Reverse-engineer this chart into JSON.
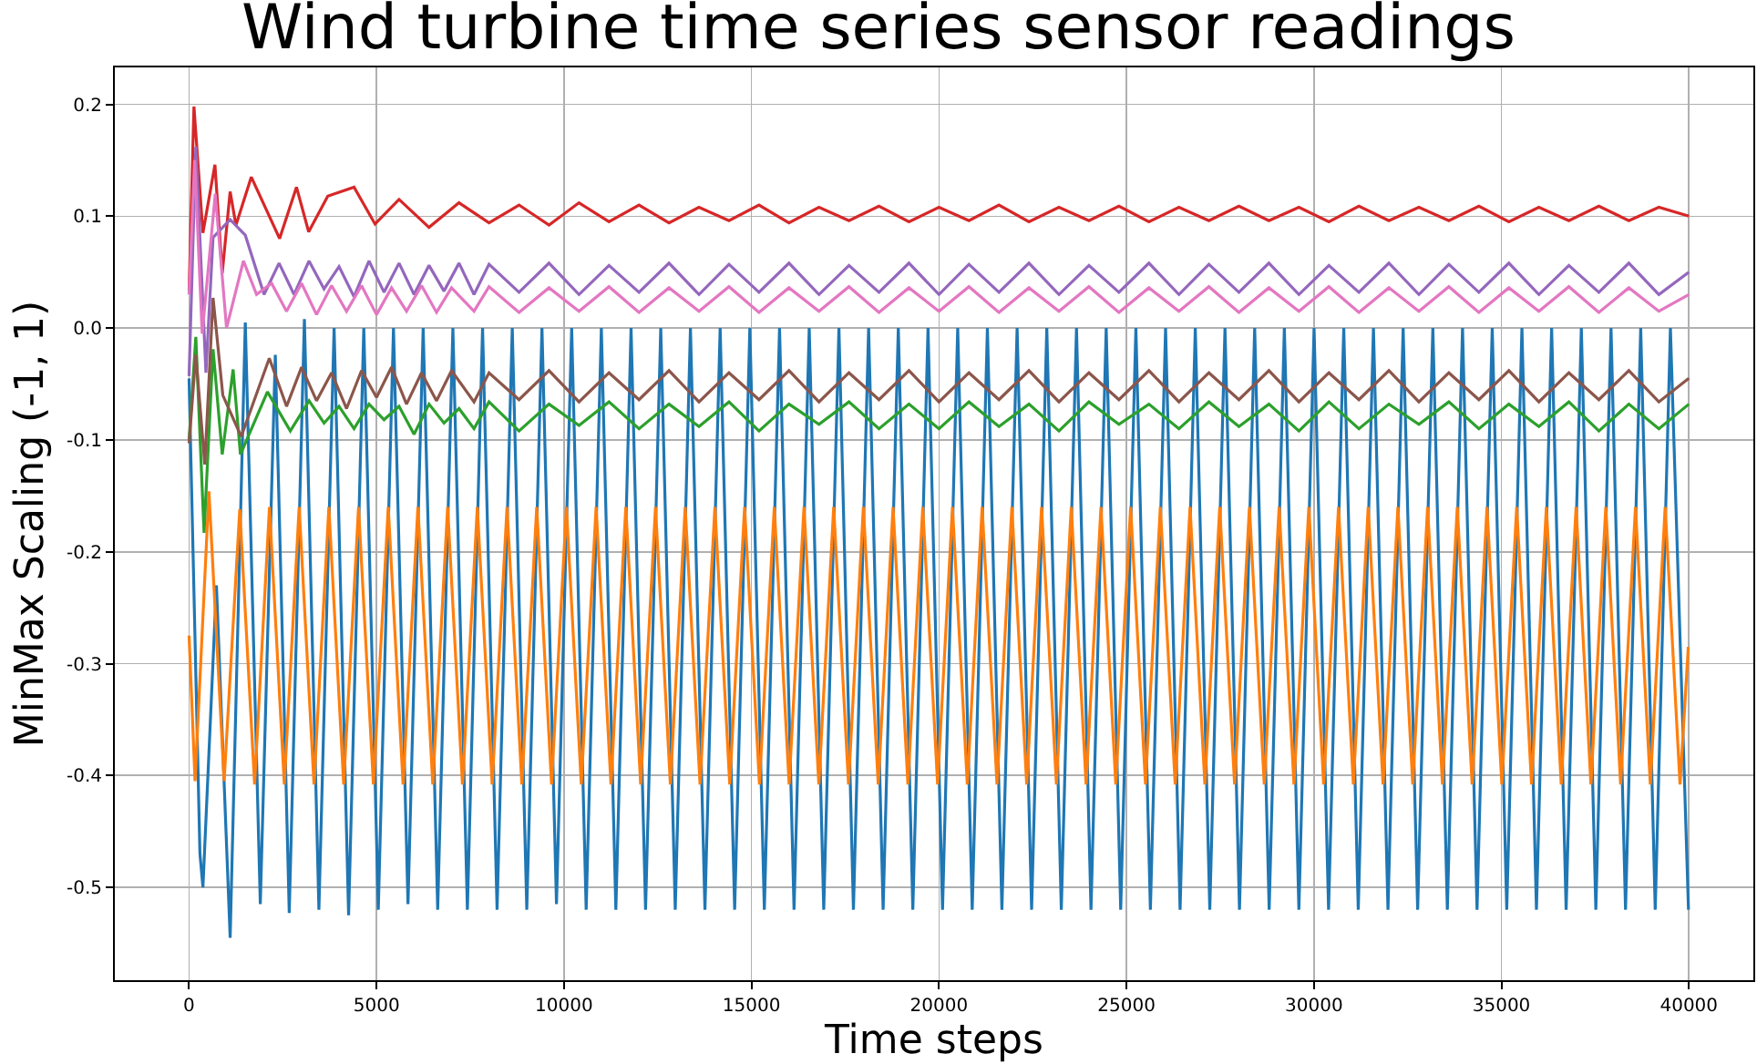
{
  "chart_data": {
    "type": "line",
    "title": "Wind turbine time series sensor readings",
    "xlabel": "Time steps",
    "ylabel": "MinMax Scaling (-1, 1)",
    "xlim": [
      -1980,
      41720
    ],
    "ylim": [
      -0.583,
      0.233
    ],
    "xticks": [
      0,
      5000,
      10000,
      15000,
      20000,
      25000,
      30000,
      35000,
      40000
    ],
    "yticks": [
      {
        "value": -0.5,
        "label": "-0.5"
      },
      {
        "value": -0.4,
        "label": "-0.4"
      },
      {
        "value": -0.3,
        "label": "-0.3"
      },
      {
        "value": -0.2,
        "label": "-0.2"
      },
      {
        "value": -0.1,
        "label": "-0.1"
      },
      {
        "value": 0,
        "label": "0.0"
      },
      {
        "value": 0.1,
        "label": "0.1"
      },
      {
        "value": 0.2,
        "label": "0.2"
      }
    ],
    "grid": true,
    "series": [
      {
        "color": "#1f77b4",
        "x": [
          0,
          290,
          370,
          730,
          1096,
          1500,
          1900,
          2300,
          2672,
          3076,
          3463,
          3868,
          4255,
          4660,
          5047,
          5452,
          5839,
          6244,
          6631,
          7036,
          7423,
          7828,
          8215,
          8620,
          9007,
          9412,
          9799,
          10204,
          10591,
          10996,
          11383,
          11788,
          12175,
          12580,
          12967,
          13372,
          13759,
          14164,
          14551,
          14956,
          15343,
          15748,
          16135,
          16540,
          16927,
          17332,
          17719,
          18124,
          18511,
          18916,
          19303,
          19708,
          20095,
          20500,
          20887,
          21292,
          21679,
          22084,
          22471,
          22876,
          23263,
          23668,
          24055,
          24460,
          24847,
          25252,
          25639,
          26044,
          26431,
          26836,
          27223,
          27628,
          28015,
          28420,
          28807,
          29212,
          29599,
          30004,
          30391,
          30796,
          31183,
          31588,
          31975,
          32380,
          32767,
          33172,
          33559,
          33964,
          34351,
          34756,
          35143,
          35548,
          35935,
          36340,
          36727,
          37132,
          37519,
          37924,
          38311,
          38716,
          39103,
          39508,
          39990
        ],
        "values": [
          -0.045,
          -0.47,
          -0.5,
          -0.23,
          -0.545,
          0.005,
          -0.515,
          -0.024,
          -0.523,
          0.008,
          -0.52,
          0.0,
          -0.525,
          0.0,
          -0.52,
          0.0,
          -0.515,
          0.0,
          -0.52,
          0.0,
          -0.52,
          0.0,
          -0.52,
          0.0,
          -0.52,
          0.0,
          -0.515,
          0.0,
          -0.52,
          0.0,
          -0.52,
          0.0,
          -0.52,
          0.0,
          -0.52,
          0.0,
          -0.52,
          0.0,
          -0.52,
          0.0,
          -0.52,
          0.0,
          -0.52,
          0.0,
          -0.52,
          0.0,
          -0.52,
          0.0,
          -0.52,
          0.0,
          -0.52,
          0.0,
          -0.52,
          0.0,
          -0.52,
          0.0,
          -0.52,
          0.0,
          -0.52,
          0.0,
          -0.52,
          0.0,
          -0.52,
          0.0,
          -0.52,
          0.0,
          -0.52,
          0.0,
          -0.52,
          0.0,
          -0.52,
          0.0,
          -0.52,
          0.0,
          -0.52,
          0.0,
          -0.52,
          0.0,
          -0.52,
          0.0,
          -0.52,
          0.0,
          -0.52,
          0.0,
          -0.52,
          0.0,
          -0.52,
          0.0,
          -0.52,
          0.0,
          -0.52,
          0.0,
          -0.52,
          0.0,
          -0.52,
          0.0,
          -0.52,
          0.0,
          -0.52,
          0.0,
          -0.52,
          0.0,
          -0.52
        ]
      },
      {
        "color": "#ff7f0e",
        "x": [
          0,
          160,
          530,
          935,
          1352,
          1748,
          2144,
          2540,
          2936,
          3332,
          3728,
          4124,
          4520,
          4916,
          5312,
          5708,
          6104,
          6500,
          6896,
          7292,
          7688,
          8084,
          8480,
          8876,
          9272,
          9668,
          10064,
          10460,
          10856,
          11252,
          11648,
          12044,
          12440,
          12836,
          13232,
          13628,
          14024,
          14420,
          14816,
          15212,
          15608,
          16004,
          16400,
          16796,
          17192,
          17588,
          17984,
          18380,
          18776,
          19172,
          19568,
          19964,
          20360,
          20756,
          21152,
          21548,
          21944,
          22340,
          22736,
          23132,
          23528,
          23924,
          24320,
          24716,
          25112,
          25508,
          25904,
          26300,
          26696,
          27092,
          27488,
          27884,
          28280,
          28676,
          29072,
          29468,
          29864,
          30260,
          30656,
          31052,
          31448,
          31844,
          32240,
          32636,
          33032,
          33428,
          33824,
          34220,
          34616,
          35012,
          35408,
          35804,
          36200,
          36596,
          36992,
          37388,
          37784,
          38180,
          38576,
          38972,
          39368,
          39764,
          39985
        ],
        "values": [
          -0.275,
          -0.405,
          -0.146,
          -0.405,
          -0.162,
          -0.408,
          -0.16,
          -0.408,
          -0.16,
          -0.408,
          -0.16,
          -0.408,
          -0.16,
          -0.408,
          -0.16,
          -0.408,
          -0.16,
          -0.408,
          -0.16,
          -0.408,
          -0.16,
          -0.408,
          -0.16,
          -0.408,
          -0.16,
          -0.408,
          -0.16,
          -0.408,
          -0.16,
          -0.408,
          -0.16,
          -0.408,
          -0.16,
          -0.408,
          -0.16,
          -0.408,
          -0.16,
          -0.408,
          -0.16,
          -0.408,
          -0.16,
          -0.408,
          -0.16,
          -0.408,
          -0.16,
          -0.408,
          -0.16,
          -0.408,
          -0.16,
          -0.408,
          -0.16,
          -0.408,
          -0.16,
          -0.408,
          -0.16,
          -0.408,
          -0.16,
          -0.408,
          -0.16,
          -0.408,
          -0.16,
          -0.408,
          -0.16,
          -0.408,
          -0.16,
          -0.408,
          -0.16,
          -0.408,
          -0.16,
          -0.408,
          -0.16,
          -0.408,
          -0.16,
          -0.408,
          -0.16,
          -0.408,
          -0.16,
          -0.408,
          -0.16,
          -0.408,
          -0.16,
          -0.408,
          -0.16,
          -0.408,
          -0.16,
          -0.408,
          -0.16,
          -0.408,
          -0.16,
          -0.408,
          -0.16,
          -0.408,
          -0.16,
          -0.408,
          -0.16,
          -0.408,
          -0.16,
          -0.408,
          -0.16,
          -0.408,
          -0.16,
          -0.408,
          -0.285
        ]
      },
      {
        "color": "#2ca02c",
        "x": [
          0,
          180,
          400,
          640,
          885,
          1175,
          1370,
          2090,
          2700,
          3200,
          3600,
          4000,
          4400,
          4800,
          5200,
          5600,
          6000,
          6400,
          6800,
          7200,
          7600,
          8000,
          8800,
          9600,
          10400,
          11200,
          12000,
          12800,
          13600,
          14400,
          15200,
          16000,
          16800,
          17600,
          18400,
          19200,
          20000,
          20800,
          21600,
          22400,
          23200,
          24000,
          24800,
          25600,
          26400,
          27200,
          28000,
          28800,
          29600,
          30400,
          31200,
          32000,
          32800,
          33600,
          34400,
          35200,
          36000,
          36800,
          37600,
          38400,
          39200,
          40000
        ],
        "values": [
          -0.1,
          -0.008,
          -0.183,
          -0.019,
          -0.113,
          -0.037,
          -0.113,
          -0.057,
          -0.092,
          -0.065,
          -0.085,
          -0.07,
          -0.09,
          -0.068,
          -0.082,
          -0.07,
          -0.095,
          -0.068,
          -0.085,
          -0.072,
          -0.09,
          -0.066,
          -0.092,
          -0.068,
          -0.087,
          -0.066,
          -0.09,
          -0.068,
          -0.088,
          -0.066,
          -0.092,
          -0.068,
          -0.086,
          -0.066,
          -0.09,
          -0.068,
          -0.09,
          -0.066,
          -0.088,
          -0.068,
          -0.092,
          -0.066,
          -0.086,
          -0.068,
          -0.09,
          -0.066,
          -0.088,
          -0.068,
          -0.092,
          -0.066,
          -0.09,
          -0.068,
          -0.086,
          -0.066,
          -0.09,
          -0.068,
          -0.088,
          -0.066,
          -0.092,
          -0.068,
          -0.09,
          -0.068
        ]
      },
      {
        "color": "#d62728",
        "x": [
          0,
          130,
          370,
          690,
          885,
          1095,
          1250,
          1660,
          2415,
          2865,
          3190,
          3700,
          4400,
          4960,
          5600,
          6400,
          7200,
          8000,
          8800,
          9600,
          10400,
          11200,
          12000,
          12800,
          13600,
          14400,
          15200,
          16000,
          16800,
          17600,
          18400,
          19200,
          20000,
          20800,
          21600,
          22400,
          23200,
          24000,
          24800,
          25600,
          26400,
          27200,
          28000,
          28800,
          29600,
          30400,
          31200,
          32000,
          32800,
          33600,
          34400,
          35200,
          36000,
          36800,
          37600,
          38400,
          39200,
          40000
        ],
        "values": [
          0.033,
          0.198,
          0.085,
          0.146,
          0.049,
          0.122,
          0.092,
          0.135,
          0.08,
          0.126,
          0.086,
          0.118,
          0.126,
          0.093,
          0.115,
          0.09,
          0.112,
          0.094,
          0.11,
          0.092,
          0.112,
          0.095,
          0.11,
          0.094,
          0.108,
          0.096,
          0.11,
          0.094,
          0.108,
          0.096,
          0.109,
          0.095,
          0.108,
          0.096,
          0.11,
          0.095,
          0.108,
          0.096,
          0.109,
          0.095,
          0.108,
          0.096,
          0.109,
          0.096,
          0.108,
          0.095,
          0.109,
          0.096,
          0.108,
          0.096,
          0.109,
          0.095,
          0.108,
          0.096,
          0.109,
          0.096,
          0.108,
          0.1
        ]
      },
      {
        "color": "#9467bd",
        "x": [
          0,
          180,
          450,
          640,
          1095,
          1500,
          2000,
          2400,
          2800,
          3200,
          3600,
          4000,
          4400,
          4800,
          5200,
          5600,
          6000,
          6400,
          6800,
          7200,
          7600,
          8000,
          8800,
          9600,
          10400,
          11200,
          12000,
          12800,
          13600,
          14400,
          15200,
          16000,
          16800,
          17600,
          18400,
          19200,
          20000,
          20800,
          21600,
          22400,
          23200,
          24000,
          24800,
          25600,
          26400,
          27200,
          28000,
          28800,
          29600,
          30400,
          31200,
          32000,
          32800,
          33600,
          34400,
          35200,
          36000,
          36800,
          37600,
          38400,
          39200,
          40000
        ],
        "values": [
          -0.043,
          0.162,
          -0.04,
          0.081,
          0.097,
          0.083,
          0.03,
          0.058,
          0.03,
          0.06,
          0.035,
          0.055,
          0.028,
          0.06,
          0.032,
          0.058,
          0.03,
          0.056,
          0.033,
          0.058,
          0.03,
          0.057,
          0.032,
          0.058,
          0.03,
          0.056,
          0.032,
          0.058,
          0.03,
          0.057,
          0.032,
          0.058,
          0.03,
          0.056,
          0.032,
          0.058,
          0.03,
          0.057,
          0.032,
          0.058,
          0.03,
          0.056,
          0.032,
          0.058,
          0.03,
          0.057,
          0.032,
          0.058,
          0.03,
          0.056,
          0.032,
          0.058,
          0.03,
          0.057,
          0.032,
          0.058,
          0.03,
          0.056,
          0.032,
          0.058,
          0.03,
          0.05
        ]
      },
      {
        "color": "#8c564b",
        "x": [
          0,
          180,
          420,
          640,
          900,
          1390,
          2140,
          2600,
          3000,
          3400,
          3800,
          4200,
          4600,
          5000,
          5400,
          5800,
          6200,
          6600,
          7000,
          7600,
          8000,
          8800,
          9600,
          10400,
          11200,
          12000,
          12800,
          13600,
          14400,
          15200,
          16000,
          16800,
          17600,
          18400,
          19200,
          20000,
          20800,
          21600,
          22400,
          23200,
          24000,
          24800,
          25600,
          26400,
          27200,
          28000,
          28800,
          29600,
          30400,
          31200,
          32000,
          32800,
          33600,
          34400,
          35200,
          36000,
          36800,
          37600,
          38400,
          39200,
          40000
        ],
        "values": [
          -0.103,
          -0.024,
          -0.122,
          0.027,
          -0.06,
          -0.097,
          -0.027,
          -0.07,
          -0.035,
          -0.065,
          -0.04,
          -0.072,
          -0.038,
          -0.062,
          -0.035,
          -0.068,
          -0.04,
          -0.065,
          -0.038,
          -0.066,
          -0.04,
          -0.064,
          -0.038,
          -0.066,
          -0.04,
          -0.064,
          -0.038,
          -0.066,
          -0.04,
          -0.064,
          -0.038,
          -0.066,
          -0.04,
          -0.064,
          -0.038,
          -0.066,
          -0.04,
          -0.064,
          -0.038,
          -0.066,
          -0.04,
          -0.064,
          -0.038,
          -0.066,
          -0.04,
          -0.064,
          -0.038,
          -0.066,
          -0.04,
          -0.064,
          -0.038,
          -0.066,
          -0.04,
          -0.064,
          -0.038,
          -0.066,
          -0.04,
          -0.064,
          -0.038,
          -0.066,
          -0.045
        ]
      },
      {
        "color": "#e377c2",
        "x": [
          0,
          150,
          350,
          700,
          1000,
          1450,
          1800,
          2200,
          2600,
          3000,
          3400,
          3800,
          4200,
          4600,
          5000,
          5400,
          5800,
          6200,
          6600,
          7000,
          7600,
          8000,
          8800,
          9600,
          10400,
          11200,
          12000,
          12800,
          13600,
          14400,
          15200,
          16000,
          16800,
          17600,
          18400,
          19200,
          20000,
          20800,
          21600,
          22400,
          23200,
          24000,
          24800,
          25600,
          26400,
          27200,
          28000,
          28800,
          29600,
          30400,
          31200,
          32000,
          32800,
          33600,
          34400,
          35200,
          36000,
          36800,
          37600,
          38400,
          39200,
          40000
        ],
        "values": [
          0.03,
          0.15,
          -0.005,
          0.12,
          0.0,
          0.06,
          0.03,
          0.04,
          0.015,
          0.04,
          0.012,
          0.038,
          0.015,
          0.038,
          0.012,
          0.036,
          0.015,
          0.038,
          0.014,
          0.036,
          0.015,
          0.037,
          0.014,
          0.036,
          0.015,
          0.037,
          0.014,
          0.036,
          0.015,
          0.037,
          0.014,
          0.036,
          0.015,
          0.037,
          0.014,
          0.036,
          0.015,
          0.037,
          0.014,
          0.036,
          0.015,
          0.037,
          0.014,
          0.036,
          0.015,
          0.037,
          0.014,
          0.036,
          0.015,
          0.037,
          0.014,
          0.036,
          0.015,
          0.037,
          0.014,
          0.036,
          0.015,
          0.037,
          0.014,
          0.036,
          0.015,
          0.03
        ]
      }
    ]
  }
}
